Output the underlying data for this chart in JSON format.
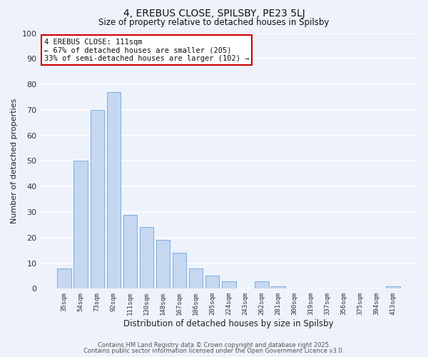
{
  "title": "4, EREBUS CLOSE, SPILSBY, PE23 5LJ",
  "subtitle": "Size of property relative to detached houses in Spilsby",
  "xlabel": "Distribution of detached houses by size in Spilsby",
  "ylabel": "Number of detached properties",
  "categories": [
    "35sqm",
    "54sqm",
    "73sqm",
    "92sqm",
    "111sqm",
    "130sqm",
    "148sqm",
    "167sqm",
    "186sqm",
    "205sqm",
    "224sqm",
    "243sqm",
    "262sqm",
    "281sqm",
    "300sqm",
    "319sqm",
    "337sqm",
    "356sqm",
    "375sqm",
    "394sqm",
    "413sqm"
  ],
  "values": [
    8,
    50,
    70,
    77,
    29,
    24,
    19,
    14,
    8,
    5,
    3,
    0,
    3,
    1,
    0,
    0,
    0,
    0,
    0,
    0,
    1
  ],
  "bar_color": "#c5d8f0",
  "bar_edge_color": "#7aade0",
  "highlight_index": 4,
  "annotation_text": "4 EREBUS CLOSE: 111sqm\n← 67% of detached houses are smaller (205)\n33% of semi-detached houses are larger (102) →",
  "annotation_box_color": "#ffffff",
  "annotation_box_edge": "#cc0000",
  "ylim": [
    0,
    100
  ],
  "yticks": [
    0,
    10,
    20,
    30,
    40,
    50,
    60,
    70,
    80,
    90,
    100
  ],
  "bg_color": "#eef2fb",
  "grid_color": "#ffffff",
  "footer1": "Contains HM Land Registry data © Crown copyright and database right 2025.",
  "footer2": "Contains public sector information licensed under the Open Government Licence v3.0."
}
